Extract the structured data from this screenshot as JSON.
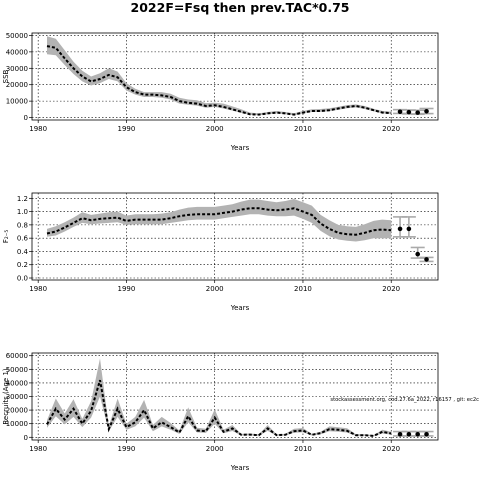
{
  "title": "2022F=Fsq then prev.TAC*0.75",
  "footnote": "stockassessment.org, cod.27.6a_2022, r16157 , git: ec2c",
  "chart_data": [
    {
      "type": "line",
      "ylabel": "SSB",
      "xlabel": "Years",
      "xlim": [
        1979.3,
        2025.3
      ],
      "ylim": [
        -1500,
        51500
      ],
      "xticks": [
        1980,
        1990,
        2000,
        2010,
        2020
      ],
      "yticks": [
        0,
        10000,
        20000,
        30000,
        40000,
        50000
      ],
      "grid": true,
      "series": [
        {
          "x": [
            1981,
            1982,
            1983,
            1984,
            1985,
            1986,
            1987,
            1988,
            1989,
            1990,
            1991,
            1992,
            1993,
            1994,
            1995,
            1996,
            1997,
            1998,
            1999,
            2000,
            2001,
            2002,
            2003,
            2004,
            2005,
            2006,
            2007,
            2008,
            2009,
            2010,
            2011,
            2012,
            2013,
            2014,
            2015,
            2016,
            2017,
            2018,
            2019,
            2020
          ],
          "y": [
            43500,
            42500,
            36000,
            30000,
            25000,
            22000,
            23500,
            26000,
            24500,
            18500,
            15500,
            14000,
            14000,
            13500,
            12500,
            10000,
            9000,
            8500,
            7000,
            7500,
            6500,
            5000,
            3500,
            2000,
            1800,
            2500,
            3000,
            2500,
            1800,
            3000,
            4000,
            4000,
            4500,
            5500,
            6500,
            7000,
            6000,
            4500,
            3000,
            2700
          ],
          "lower": [
            38500,
            38000,
            32000,
            26500,
            22000,
            19500,
            21000,
            23500,
            22000,
            16500,
            14000,
            12500,
            12500,
            12000,
            11000,
            8500,
            7800,
            7300,
            6000,
            6500,
            5500,
            4200,
            2800,
            1600,
            1400,
            2000,
            2500,
            2000,
            1400,
            2500,
            3400,
            3400,
            3800,
            4800,
            5700,
            6200,
            5200,
            3800,
            2500,
            2200
          ],
          "upper": [
            49500,
            48000,
            41000,
            34000,
            28500,
            25000,
            27000,
            30000,
            28000,
            21000,
            17500,
            15500,
            15500,
            15500,
            14500,
            12000,
            11000,
            10500,
            8800,
            9000,
            8500,
            6800,
            5000,
            3000,
            2500,
            3400,
            4000,
            3400,
            2600,
            4000,
            5000,
            5200,
            5600,
            6600,
            7600,
            8000,
            7000,
            5400,
            4000,
            3600
          ]
        }
      ],
      "forecast": {
        "x": [
          2021,
          2022,
          2023,
          2024
        ],
        "y": [
          3500,
          3300,
          3000,
          3800
        ],
        "lower": [
          2500,
          2200,
          2000,
          2400
        ],
        "upper": [
          4800,
          4600,
          4400,
          5500
        ]
      }
    },
    {
      "type": "line",
      "ylabel": "F₂₋₅",
      "xlabel": "Years",
      "xlim": [
        1979.3,
        2025.3
      ],
      "ylim": [
        -0.03,
        1.28
      ],
      "xticks": [
        1980,
        1990,
        2000,
        2010,
        2020
      ],
      "yticks": [
        0.0,
        0.2,
        0.4,
        0.6,
        0.8,
        1.0,
        1.2
      ],
      "ytick_labels": [
        "0.0",
        "0.2",
        "0.4",
        "0.6",
        "0.8",
        "1.0",
        "1.2"
      ],
      "grid": true,
      "series": [
        {
          "x": [
            1981,
            1982,
            1983,
            1984,
            1985,
            1986,
            1987,
            1988,
            1989,
            1990,
            1991,
            1992,
            1993,
            1994,
            1995,
            1996,
            1997,
            1998,
            1999,
            2000,
            2001,
            2002,
            2003,
            2004,
            2005,
            2006,
            2007,
            2008,
            2009,
            2010,
            2011,
            2012,
            2013,
            2014,
            2015,
            2016,
            2017,
            2018,
            2019,
            2020
          ],
          "y": [
            0.67,
            0.7,
            0.76,
            0.83,
            0.9,
            0.87,
            0.89,
            0.9,
            0.91,
            0.86,
            0.88,
            0.88,
            0.88,
            0.88,
            0.9,
            0.93,
            0.95,
            0.96,
            0.96,
            0.96,
            0.98,
            1.0,
            1.03,
            1.05,
            1.05,
            1.03,
            1.02,
            1.03,
            1.05,
            1.0,
            0.95,
            0.82,
            0.74,
            0.68,
            0.66,
            0.65,
            0.68,
            0.72,
            0.73,
            0.72
          ],
          "lower": [
            0.62,
            0.64,
            0.7,
            0.77,
            0.83,
            0.81,
            0.82,
            0.83,
            0.84,
            0.8,
            0.81,
            0.81,
            0.81,
            0.81,
            0.83,
            0.85,
            0.87,
            0.88,
            0.88,
            0.88,
            0.9,
            0.92,
            0.94,
            0.96,
            0.96,
            0.94,
            0.93,
            0.93,
            0.94,
            0.89,
            0.83,
            0.71,
            0.63,
            0.58,
            0.56,
            0.55,
            0.57,
            0.6,
            0.6,
            0.6
          ],
          "upper": [
            0.74,
            0.78,
            0.84,
            0.91,
            0.99,
            0.95,
            0.97,
            0.99,
            1.0,
            0.94,
            0.96,
            0.96,
            0.96,
            0.97,
            0.99,
            1.03,
            1.06,
            1.07,
            1.07,
            1.07,
            1.09,
            1.11,
            1.15,
            1.18,
            1.18,
            1.16,
            1.14,
            1.16,
            1.19,
            1.14,
            1.09,
            0.95,
            0.87,
            0.8,
            0.78,
            0.77,
            0.81,
            0.86,
            0.88,
            0.87
          ]
        }
      ],
      "forecast": {
        "x": [
          2021,
          2022,
          2023,
          2024
        ],
        "y": [
          0.74,
          0.74,
          0.36,
          0.28
        ],
        "lower": [
          0.62,
          0.62,
          0.3,
          0.25
        ],
        "upper": [
          0.92,
          0.92,
          0.46,
          0.31
        ]
      }
    },
    {
      "type": "line",
      "ylabel": "Recruits (Age 1)",
      "xlabel": "Years",
      "xlim": [
        1979.3,
        2025.3
      ],
      "ylim": [
        -2000,
        62000
      ],
      "xticks": [
        1980,
        1990,
        2000,
        2010,
        2020
      ],
      "yticks": [
        0,
        10000,
        20000,
        30000,
        40000,
        50000,
        60000
      ],
      "grid": true,
      "series": [
        {
          "x": [
            1981,
            1982,
            1983,
            1984,
            1985,
            1986,
            1987,
            1988,
            1989,
            1990,
            1991,
            1992,
            1993,
            1994,
            1995,
            1996,
            1997,
            1998,
            1999,
            2000,
            2001,
            2002,
            2003,
            2004,
            2005,
            2006,
            2007,
            2008,
            2009,
            2010,
            2011,
            2012,
            2013,
            2014,
            2015,
            2016,
            2017,
            2018,
            2019,
            2020
          ],
          "y": [
            9500,
            21000,
            13000,
            21000,
            10000,
            19500,
            42000,
            6000,
            21000,
            7500,
            11000,
            20000,
            6500,
            11000,
            7500,
            3500,
            15500,
            5000,
            4500,
            14500,
            4000,
            6500,
            1800,
            2000,
            1500,
            6500,
            1600,
            1800,
            4500,
            5000,
            1800,
            3000,
            6000,
            5500,
            4800,
            1500,
            1500,
            1000,
            4000,
            2800
          ],
          "lower": [
            7000,
            15500,
            9500,
            15000,
            7500,
            14500,
            30000,
            4500,
            15000,
            5500,
            8000,
            14500,
            4500,
            8000,
            5500,
            2500,
            11000,
            3600,
            3200,
            10000,
            2900,
            4600,
            1300,
            1400,
            1100,
            4700,
            1100,
            1300,
            3300,
            3700,
            1300,
            2200,
            4500,
            4100,
            3500,
            1000,
            1000,
            700,
            2800,
            2000
          ],
          "upper": [
            12500,
            28500,
            17500,
            28000,
            13500,
            26500,
            58000,
            8000,
            28500,
            10000,
            15000,
            27500,
            9000,
            15000,
            10500,
            5000,
            22000,
            7000,
            6300,
            20500,
            5500,
            9000,
            2500,
            2800,
            2100,
            9000,
            2300,
            2500,
            6300,
            6800,
            2500,
            4100,
            8000,
            7400,
            6600,
            2200,
            2200,
            1500,
            5600,
            4000
          ]
        }
      ],
      "forecast": {
        "x": [
          2021,
          2022,
          2023,
          2024
        ],
        "y": [
          2200,
          2200,
          2200,
          2200
        ],
        "lower": [
          1000,
          1000,
          1000,
          1000
        ],
        "upper": [
          4200,
          4200,
          4200,
          4200
        ]
      }
    }
  ]
}
